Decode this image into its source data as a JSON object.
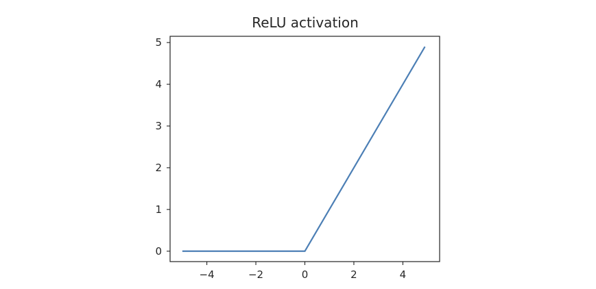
{
  "chart_data": {
    "type": "line",
    "title": "ReLU activation",
    "xlabel": "",
    "ylabel": "",
    "xlim": [
      -5.5,
      5.5
    ],
    "ylim": [
      -0.25,
      5.15
    ],
    "x_ticks": [
      -4,
      -2,
      0,
      2,
      4
    ],
    "x_tick_labels": [
      "−4",
      "−2",
      "0",
      "2",
      "4"
    ],
    "y_ticks": [
      0,
      1,
      2,
      3,
      4,
      5
    ],
    "y_tick_labels": [
      "0",
      "1",
      "2",
      "3",
      "4",
      "5"
    ],
    "grid": false,
    "series": [
      {
        "color": "#4c7fb5",
        "x": [
          -5,
          -4,
          -3,
          -2,
          -1,
          0,
          1,
          2,
          3,
          4,
          4.9
        ],
        "y": [
          0,
          0,
          0,
          0,
          0,
          0,
          1,
          2,
          3,
          4,
          4.9
        ]
      }
    ]
  }
}
